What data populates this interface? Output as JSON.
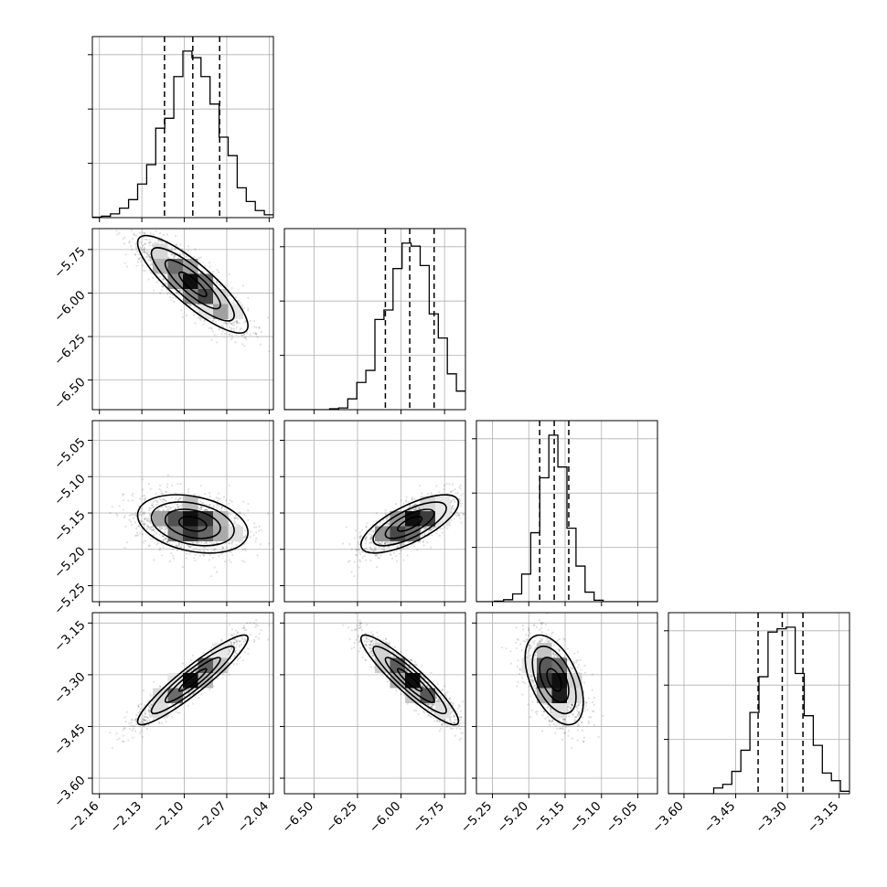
{
  "chart_data": {
    "type": "corner",
    "title": "",
    "params": [
      {
        "range": [
          -2.165,
          -2.037
        ],
        "ticks": [
          -2.16,
          -2.13,
          -2.1,
          -2.07,
          -2.04
        ],
        "tick_labels": [
          "−2.16",
          "−2.13",
          "−2.10",
          "−2.07",
          "−2.04"
        ],
        "median": -2.094,
        "q16": -2.114,
        "q84": -2.075
      },
      {
        "range": [
          -6.67,
          -5.63
        ],
        "ticks": [
          -6.5,
          -6.25,
          -6.0,
          -5.75
        ],
        "tick_labels": [
          "−6.50",
          "−6.25",
          "−6.00",
          "−5.75"
        ],
        "median": -5.95,
        "q16": -6.09,
        "q84": -5.81
      },
      {
        "range": [
          -5.272,
          -5.023
        ],
        "ticks": [
          -5.25,
          -5.2,
          -5.15,
          -5.1,
          -5.05
        ],
        "tick_labels": [
          "−5.25",
          "−5.20",
          "−5.15",
          "−5.10",
          "−5.05"
        ],
        "median": -5.165,
        "q16": -5.185,
        "q84": -5.145
      },
      {
        "range": [
          -3.645,
          -3.12
        ],
        "ticks": [
          -3.6,
          -3.45,
          -3.3,
          -3.15
        ],
        "tick_labels": [
          "−3.60",
          "−3.45",
          "−3.30",
          "−3.15"
        ],
        "median": -3.315,
        "q16": -3.385,
        "q84": -3.255
      }
    ],
    "correlation": [
      [
        1.0,
        -0.85,
        -0.3,
        0.93
      ],
      [
        -0.85,
        1.0,
        0.72,
        -0.92
      ],
      [
        -0.3,
        0.72,
        1.0,
        -0.5
      ],
      [
        0.93,
        -0.92,
        -0.5,
        1.0
      ]
    ],
    "histogram_bins": 20,
    "contour_levels": [
      "0.5-sigma",
      "1-sigma",
      "1.5-sigma",
      "2-sigma"
    ],
    "grid": true,
    "colors": {
      "line": "#000000",
      "grid": "#b0b0b0",
      "scatter": "#000000",
      "background": "#ffffff"
    }
  }
}
